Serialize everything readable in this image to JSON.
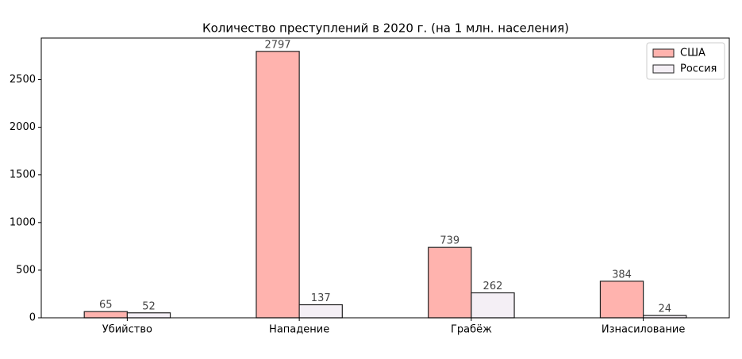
{
  "chart_data": {
    "type": "bar",
    "title": "Количество преступлений в 2020 г. (на 1 млн. населения)",
    "categories": [
      "Убийство",
      "Нападение",
      "Грабёж",
      "Изнасилование"
    ],
    "series": [
      {
        "name": "США",
        "color": "#ffb3ae",
        "values": [
          65,
          2797,
          739,
          384
        ]
      },
      {
        "name": "Россия",
        "color": "#f4eff5",
        "values": [
          52,
          137,
          262,
          24
        ]
      }
    ],
    "ylim": [
      0,
      2937
    ],
    "yticks": [
      0,
      500,
      1000,
      1500,
      2000,
      2500
    ],
    "legend": "upper right",
    "value_labels_shown": true
  }
}
